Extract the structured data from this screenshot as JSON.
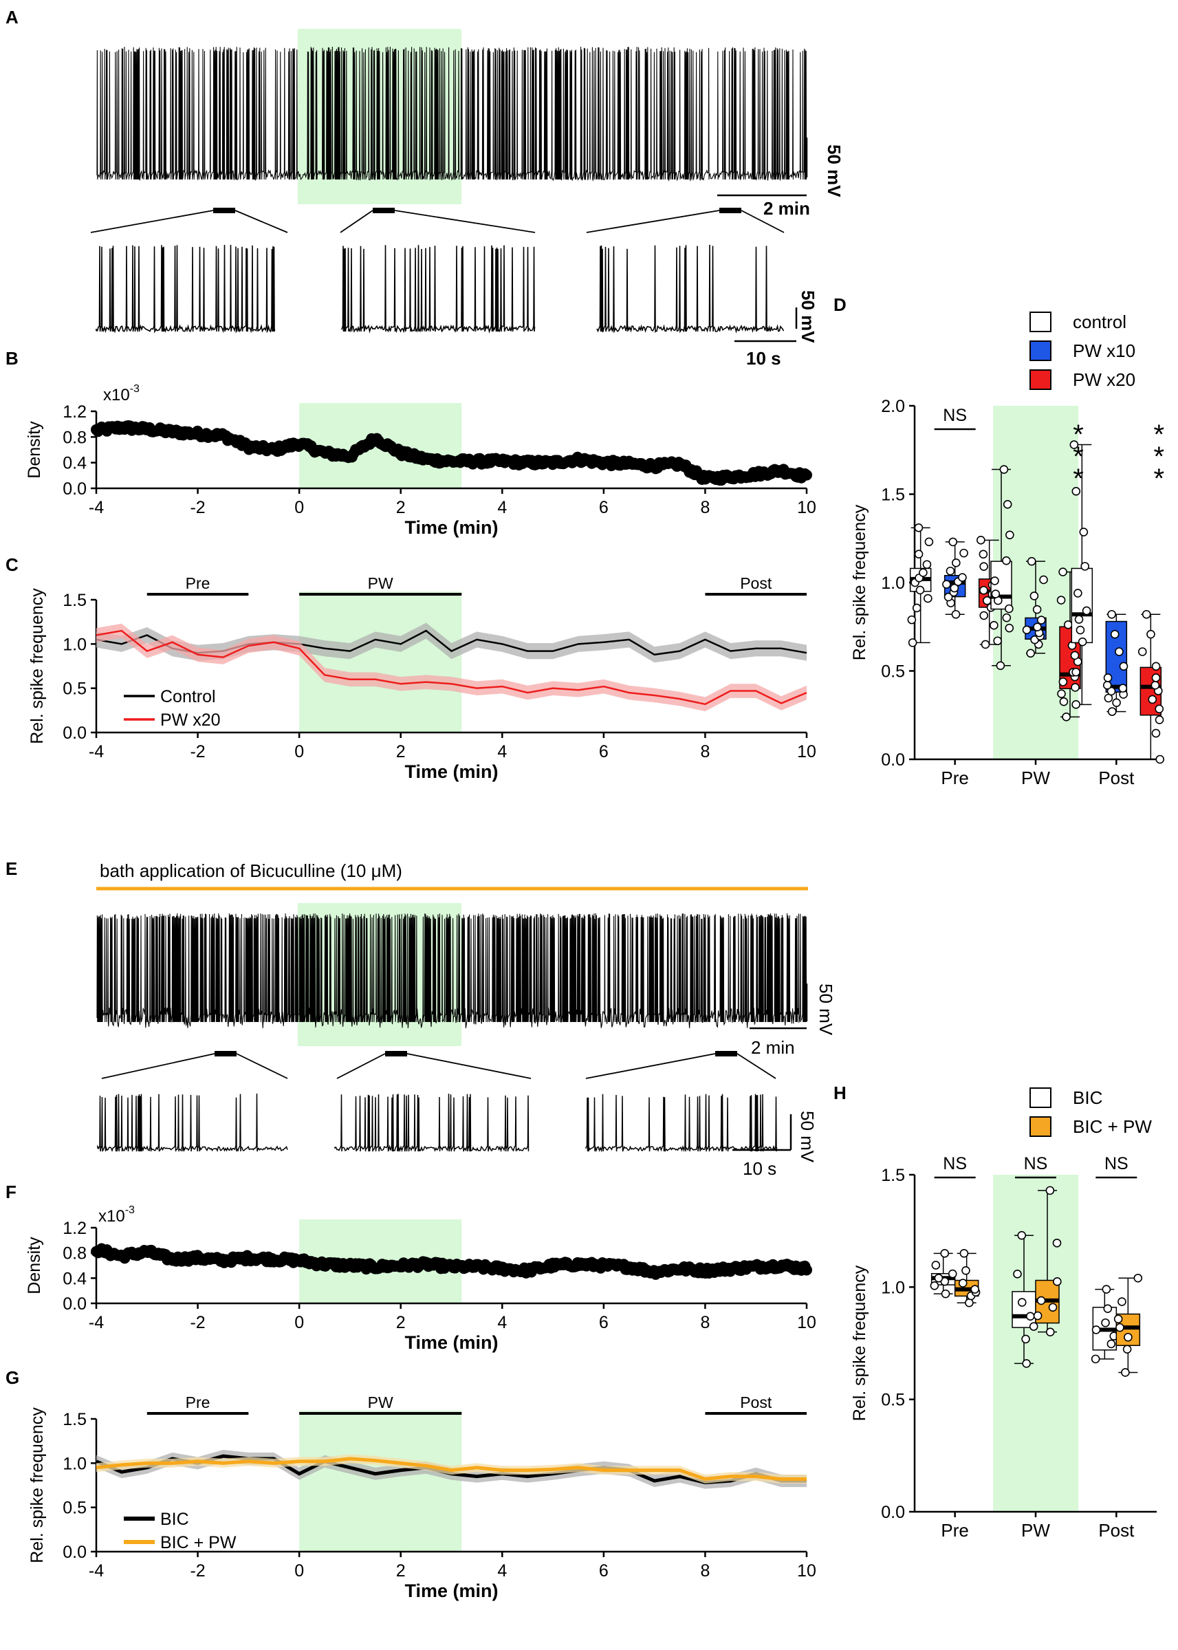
{
  "colors": {
    "shade": "#d8f8d8",
    "black": "#000000",
    "blue": "#1e56e6",
    "red": "#ee1d1d",
    "orange": "#f5a623",
    "orange_line": "#f7a81b",
    "gray_band": "#b0b0b0",
    "red_band": "#f5a8a8",
    "orange_band": "#f5dfa8"
  },
  "panels": {
    "A": {
      "label": "A",
      "scale_v": "50 mV",
      "scale_t": "2 min",
      "inset_scale_v": "50 mV",
      "inset_scale_t": "10 s"
    },
    "B": {
      "label": "B",
      "exponent": "x10",
      "exponent_sup": "-3"
    },
    "C": {
      "label": "C"
    },
    "D": {
      "label": "D"
    },
    "E": {
      "label": "E",
      "bath_label": "bath application of Bicuculline (10 μM)",
      "scale_v": "50 mV",
      "scale_t": "2 min",
      "inset_scale_v": "50 mV",
      "inset_scale_t": "10 s"
    },
    "F": {
      "label": "F",
      "exponent": "x10",
      "exponent_sup": "-3"
    },
    "G": {
      "label": "G"
    },
    "H": {
      "label": "H"
    }
  },
  "chart_data": [
    {
      "id": "B",
      "type": "scatter",
      "ylabel": "Density",
      "xlabel": "Time (min)",
      "xlim": [
        -4,
        10
      ],
      "ylim": [
        0,
        1.2
      ],
      "xticks": [
        "-4",
        "-2",
        "0",
        "2",
        "4",
        "6",
        "8",
        "10"
      ],
      "yticks": [
        "0.0",
        "0.4",
        "0.8",
        "1.2"
      ],
      "shade_x": [
        0,
        3.2
      ],
      "profile_x": [
        -4,
        -3.5,
        -3,
        -2.5,
        -2,
        -1.5,
        -1,
        -0.5,
        0,
        0.5,
        1,
        1.5,
        2,
        2.5,
        3,
        3.5,
        4,
        4.5,
        5,
        5.5,
        6,
        6.5,
        7,
        7.5,
        8,
        8.5,
        9,
        9.5,
        10
      ],
      "profile_y": [
        0.9,
        0.95,
        0.92,
        0.88,
        0.85,
        0.82,
        0.65,
        0.6,
        0.7,
        0.55,
        0.5,
        0.78,
        0.55,
        0.45,
        0.42,
        0.42,
        0.42,
        0.4,
        0.4,
        0.45,
        0.4,
        0.38,
        0.35,
        0.38,
        0.15,
        0.18,
        0.22,
        0.28,
        0.18
      ]
    },
    {
      "id": "C",
      "type": "line",
      "ylabel": "Rel. spike frequency",
      "xlabel": "Time (min)",
      "xlim": [
        -4,
        10
      ],
      "ylim": [
        0,
        1.5
      ],
      "xticks": [
        "-4",
        "-2",
        "0",
        "2",
        "4",
        "6",
        "8",
        "10"
      ],
      "yticks": [
        "0.0",
        "0.5",
        "1.0",
        "1.5"
      ],
      "shade_x": [
        0,
        3.2
      ],
      "periods": [
        {
          "name": "Pre",
          "x": [
            -3,
            -1
          ]
        },
        {
          "name": "PW",
          "x": [
            0,
            3.2
          ]
        },
        {
          "name": "Post",
          "x": [
            8,
            10
          ]
        }
      ],
      "x": [
        -4,
        -3.5,
        -3,
        -2.5,
        -2,
        -1.5,
        -1,
        -0.5,
        0,
        0.5,
        1,
        1.5,
        2,
        2.5,
        3,
        3.5,
        4,
        4.5,
        5,
        5.5,
        6,
        6.5,
        7,
        7.5,
        8,
        8.5,
        9,
        9.5,
        10
      ],
      "series": [
        {
          "name": "Control",
          "color": "#000000",
          "band": "#b0b0b0",
          "values": [
            1.05,
            1.0,
            1.1,
            0.95,
            0.9,
            0.92,
            1.0,
            1.02,
            1.0,
            0.95,
            0.92,
            1.05,
            1.0,
            1.15,
            0.92,
            1.05,
            1.0,
            0.92,
            0.92,
            1.0,
            1.02,
            1.05,
            0.88,
            0.92,
            1.05,
            0.92,
            0.95,
            0.95,
            0.9
          ],
          "err": 0.09
        },
        {
          "name": "PW x20",
          "color": "#ee1d1d",
          "band": "#f5a8a8",
          "values": [
            1.1,
            1.15,
            0.92,
            1.02,
            0.88,
            0.85,
            0.98,
            1.02,
            0.95,
            0.65,
            0.6,
            0.6,
            0.55,
            0.57,
            0.55,
            0.5,
            0.52,
            0.45,
            0.5,
            0.48,
            0.52,
            0.45,
            0.42,
            0.38,
            0.32,
            0.47,
            0.47,
            0.33,
            0.45
          ],
          "err": 0.08
        }
      ],
      "legend": [
        "Control",
        "PW x20"
      ]
    },
    {
      "id": "D",
      "type": "box",
      "ylabel": "Rel. spike frequency",
      "ylim": [
        0,
        2.0
      ],
      "yticks": [
        "0.0",
        "0.5",
        "1.0",
        "1.5",
        "2.0"
      ],
      "groups": [
        "Pre",
        "PW",
        "Post"
      ],
      "shade_group": "PW",
      "legend": [
        {
          "name": "control",
          "color": "#ffffff"
        },
        {
          "name": "PW x10",
          "color": "#1e56e6"
        },
        {
          "name": "PW x20",
          "color": "#ee1d1d"
        }
      ],
      "significance": [
        "NS",
        "* * *",
        "* * *"
      ],
      "boxes": [
        {
          "group": "Pre",
          "series": "control",
          "min": 0.66,
          "q1": 0.95,
          "median": 1.02,
          "q3": 1.08,
          "max": 1.31
        },
        {
          "group": "Pre",
          "series": "PW x10",
          "min": 0.82,
          "q1": 0.92,
          "median": 1.0,
          "q3": 1.04,
          "max": 1.23
        },
        {
          "group": "Pre",
          "series": "PW x20",
          "min": 0.65,
          "q1": 0.86,
          "median": 0.95,
          "q3": 1.02,
          "max": 1.24
        },
        {
          "group": "PW",
          "series": "control",
          "min": 0.53,
          "q1": 0.85,
          "median": 0.92,
          "q3": 1.12,
          "max": 1.64
        },
        {
          "group": "PW",
          "series": "PW x10",
          "min": 0.6,
          "q1": 0.68,
          "median": 0.74,
          "q3": 0.8,
          "max": 1.12
        },
        {
          "group": "PW",
          "series": "PW x20",
          "min": 0.24,
          "q1": 0.4,
          "median": 0.48,
          "q3": 0.75,
          "max": 1.06
        },
        {
          "group": "Post",
          "series": "control",
          "min": 0.31,
          "q1": 0.66,
          "median": 0.82,
          "q3": 1.08,
          "max": 1.78
        },
        {
          "group": "Post",
          "series": "PW x10",
          "min": 0.27,
          "q1": 0.38,
          "median": 0.41,
          "q3": 0.78,
          "max": 0.82
        },
        {
          "group": "Post",
          "series": "PW x20",
          "min": 0.0,
          "q1": 0.25,
          "median": 0.41,
          "q3": 0.52,
          "max": 0.82
        }
      ]
    },
    {
      "id": "F",
      "type": "scatter",
      "ylabel": "Density",
      "xlabel": "Time (min)",
      "xlim": [
        -4,
        10
      ],
      "ylim": [
        0,
        1.2
      ],
      "xticks": [
        "-4",
        "-2",
        "0",
        "2",
        "4",
        "6",
        "8",
        "10"
      ],
      "yticks": [
        "0.0",
        "0.4",
        "0.8",
        "1.2"
      ],
      "shade_x": [
        0,
        3.2
      ],
      "profile_x": [
        -4,
        -3.5,
        -3,
        -2.5,
        -2,
        -1.5,
        -1,
        -0.5,
        0,
        0.5,
        1,
        1.5,
        2,
        2.5,
        3,
        3.5,
        4,
        4.5,
        5,
        5.5,
        6,
        6.5,
        7,
        7.5,
        8,
        8.5,
        9,
        9.5,
        10
      ],
      "profile_y": [
        0.85,
        0.75,
        0.82,
        0.7,
        0.72,
        0.68,
        0.72,
        0.7,
        0.68,
        0.62,
        0.6,
        0.58,
        0.6,
        0.62,
        0.58,
        0.58,
        0.55,
        0.52,
        0.6,
        0.62,
        0.6,
        0.58,
        0.5,
        0.55,
        0.52,
        0.55,
        0.58,
        0.6,
        0.55
      ]
    },
    {
      "id": "G",
      "type": "line",
      "ylabel": "Rel. spike frequency",
      "xlabel": "Time (min)",
      "xlim": [
        -4,
        10
      ],
      "ylim": [
        0,
        1.5
      ],
      "xticks": [
        "-4",
        "-2",
        "0",
        "2",
        "4",
        "6",
        "8",
        "10"
      ],
      "yticks": [
        "0.0",
        "0.5",
        "1.0",
        "1.5"
      ],
      "shade_x": [
        0,
        3.2
      ],
      "periods": [
        {
          "name": "Pre",
          "x": [
            -3,
            -1
          ]
        },
        {
          "name": "PW",
          "x": [
            0,
            3.2
          ]
        },
        {
          "name": "Post",
          "x": [
            8,
            10
          ]
        }
      ],
      "x": [
        -4,
        -3.5,
        -3,
        -2.5,
        -2,
        -1.5,
        -1,
        -0.5,
        0,
        0.5,
        1,
        1.5,
        2,
        2.5,
        3,
        3.5,
        4,
        4.5,
        5,
        5.5,
        6,
        6.5,
        7,
        7.5,
        8,
        8.5,
        9,
        9.5,
        10
      ],
      "series": [
        {
          "name": "BIC",
          "color": "#000000",
          "band": "#b0b0b0",
          "values": [
            1.02,
            0.9,
            0.95,
            1.05,
            1.0,
            1.08,
            1.05,
            1.05,
            0.88,
            1.02,
            0.95,
            0.88,
            0.92,
            0.95,
            0.88,
            0.85,
            0.88,
            0.85,
            0.88,
            0.92,
            0.95,
            0.92,
            0.8,
            0.85,
            0.78,
            0.8,
            0.88,
            0.8,
            0.8
          ],
          "err": 0.07
        },
        {
          "name": "BIC + PW",
          "color": "#f7a81b",
          "band": "#f5dfa8",
          "values": [
            0.95,
            0.98,
            1.0,
            1.0,
            1.02,
            1.0,
            1.02,
            1.0,
            1.02,
            1.02,
            1.05,
            1.03,
            1.0,
            0.97,
            0.92,
            0.95,
            0.92,
            0.92,
            0.93,
            0.95,
            0.92,
            0.92,
            0.92,
            0.92,
            0.82,
            0.85,
            0.85,
            0.82,
            0.82
          ],
          "err": 0.05
        }
      ],
      "legend": [
        "BIC",
        "BIC + PW"
      ]
    },
    {
      "id": "H",
      "type": "box",
      "ylabel": "Rel. spike frequency",
      "ylim": [
        0,
        1.5
      ],
      "yticks": [
        "0.0",
        "0.5",
        "1.0",
        "1.5"
      ],
      "groups": [
        "Pre",
        "PW",
        "Post"
      ],
      "shade_group": "PW",
      "legend": [
        {
          "name": "BIC",
          "color": "#ffffff"
        },
        {
          "name": "BIC + PW",
          "color": "#f5a623"
        }
      ],
      "significance": [
        "NS",
        "NS",
        "NS"
      ],
      "boxes": [
        {
          "group": "Pre",
          "series": "BIC",
          "min": 0.97,
          "q1": 1.01,
          "median": 1.04,
          "q3": 1.06,
          "max": 1.15
        },
        {
          "group": "Pre",
          "series": "BIC + PW",
          "min": 0.93,
          "q1": 0.96,
          "median": 0.99,
          "q3": 1.03,
          "max": 1.15
        },
        {
          "group": "PW",
          "series": "BIC",
          "min": 0.66,
          "q1": 0.82,
          "median": 0.87,
          "q3": 0.98,
          "max": 1.23
        },
        {
          "group": "PW",
          "series": "BIC + PW",
          "min": 0.8,
          "q1": 0.84,
          "median": 0.94,
          "q3": 1.03,
          "max": 1.43
        },
        {
          "group": "Post",
          "series": "BIC",
          "min": 0.68,
          "q1": 0.72,
          "median": 0.81,
          "q3": 0.91,
          "max": 0.99
        },
        {
          "group": "Post",
          "series": "BIC + PW",
          "min": 0.62,
          "q1": 0.74,
          "median": 0.82,
          "q3": 0.88,
          "max": 1.04
        }
      ]
    }
  ]
}
